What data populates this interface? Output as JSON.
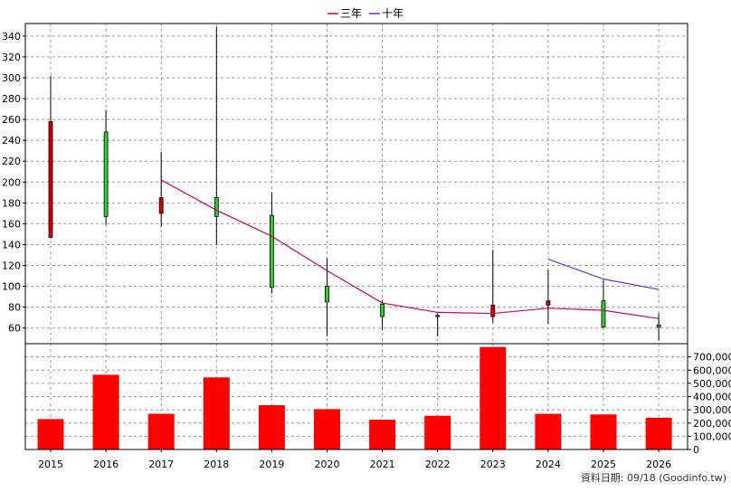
{
  "chart_data": {
    "type": "candlestick",
    "x": [
      "2015",
      "2016",
      "2017",
      "2018",
      "2019",
      "2020",
      "2021",
      "2022",
      "2023",
      "2024",
      "2025",
      "2026"
    ],
    "price": {
      "ylim": [
        45,
        352
      ],
      "ticks": [
        60,
        80,
        100,
        120,
        140,
        160,
        180,
        200,
        220,
        240,
        260,
        280,
        300,
        320,
        340
      ],
      "candles": [
        {
          "open": 147,
          "close": 258,
          "high": 302,
          "low": 146
        },
        {
          "open": 248,
          "close": 167,
          "high": 269,
          "low": 159
        },
        {
          "open": 170,
          "close": 185,
          "high": 229,
          "low": 157
        },
        {
          "open": 185,
          "close": 167,
          "high": 349,
          "low": 140
        },
        {
          "open": 168,
          "close": 99,
          "high": 190,
          "low": 93
        },
        {
          "open": 100,
          "close": 85,
          "high": 127,
          "low": 52
        },
        {
          "open": 83,
          "close": 71,
          "high": 87,
          "low": 58
        },
        {
          "open": 72,
          "close": 71,
          "high": 74,
          "low": 52
        },
        {
          "open": 71,
          "close": 82,
          "high": 135,
          "low": 65
        },
        {
          "open": 82,
          "close": 86,
          "high": 116,
          "low": 64
        },
        {
          "open": 86,
          "close": 61,
          "high": 106,
          "low": 60
        },
        {
          "open": 63,
          "close": 61,
          "high": 74,
          "low": 48
        }
      ]
    },
    "series": [
      {
        "name": "三年",
        "color": "#cc0066",
        "values": [
          null,
          null,
          202,
          173,
          148,
          115,
          84,
          75,
          74,
          79,
          77,
          69
        ]
      },
      {
        "name": "十年",
        "color": "#6633cc",
        "values": [
          null,
          null,
          null,
          null,
          null,
          null,
          null,
          null,
          null,
          126,
          107,
          97
        ]
      }
    ],
    "volume": {
      "ylim": [
        0,
        800000
      ],
      "ticks": [
        0,
        100000,
        200000,
        300000,
        400000,
        500000,
        600000,
        700000
      ],
      "tick_labels": [
        "0",
        "100,000",
        "200,000",
        "300,000",
        "400,000",
        "500,000",
        "600,000",
        "700,000"
      ],
      "values": [
        230000,
        565000,
        270000,
        545000,
        335000,
        305000,
        225000,
        255000,
        775000,
        270000,
        265000,
        240000
      ],
      "color": "#ff0000"
    },
    "legend_position": "top-center",
    "grid": true
  },
  "footer": {
    "source_note": "資料日期: 09/18  (Goodinfo.tw)"
  },
  "colors": {
    "up_candle": "#cc0000",
    "down_candle": "#33cc33",
    "grid": "#999999"
  }
}
